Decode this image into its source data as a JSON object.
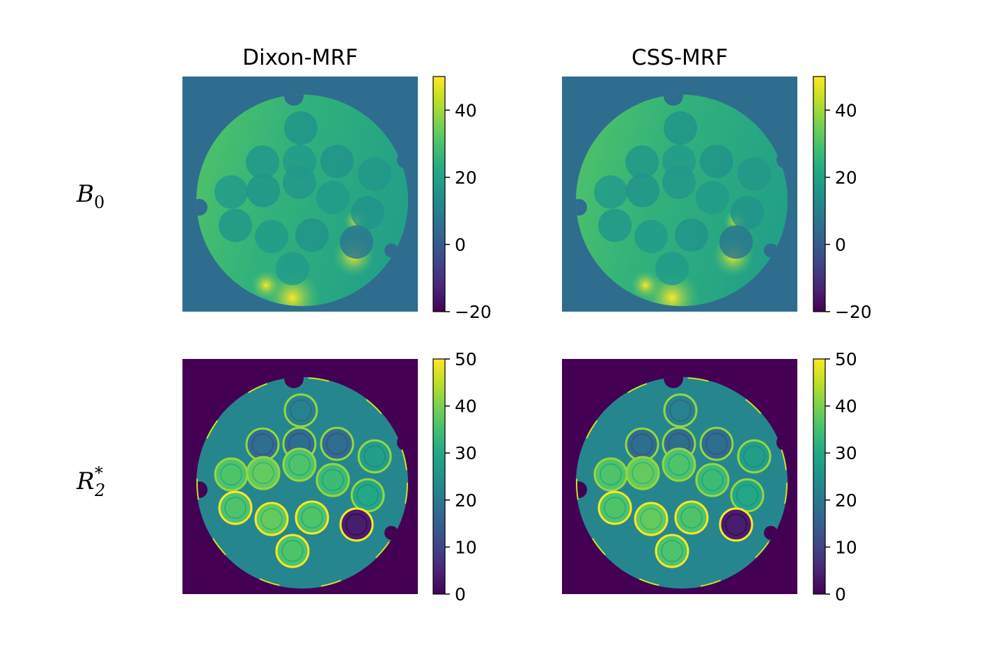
{
  "chart_data": {
    "type": "heatmap",
    "colormap": "viridis",
    "columns": [
      "Dixon-MRF",
      "CSS-MRF"
    ],
    "rows": [
      {
        "label": {
          "base": "B",
          "sub": "0",
          "sup": ""
        },
        "colorbar": {
          "vmin": -20,
          "vmax": 50,
          "ticks": [
            -20,
            0,
            20,
            40
          ],
          "tick_labels": [
            "−20",
            "0",
            "20",
            "40"
          ]
        },
        "background_value": 5,
        "phantom_base_value": 26
      },
      {
        "label": {
          "base": "R",
          "sub": "2",
          "sup": "*"
        },
        "colorbar": {
          "vmin": 0,
          "vmax": 50,
          "ticks": [
            0,
            10,
            20,
            30,
            40,
            50
          ],
          "tick_labels": [
            "0",
            "10",
            "20",
            "30",
            "40",
            "50"
          ]
        },
        "background_value": 0,
        "phantom_base_value": 23
      }
    ],
    "panels": [
      {
        "row": 0,
        "col": 0,
        "title": "Dixon-MRF"
      },
      {
        "row": 0,
        "col": 1,
        "title": "CSS-MRF"
      },
      {
        "row": 1,
        "col": 0,
        "title": ""
      },
      {
        "row": 1,
        "col": 1,
        "title": ""
      }
    ]
  }
}
